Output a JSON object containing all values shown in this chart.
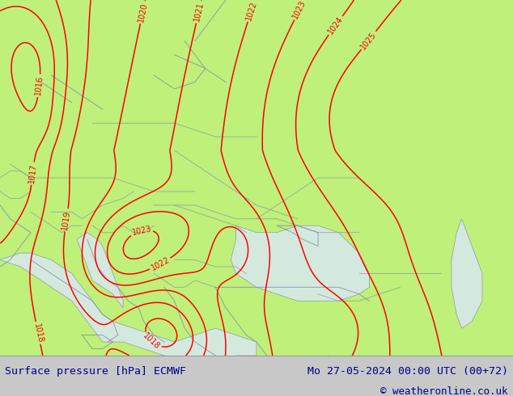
{
  "title_left": "Surface pressure [hPa] ECMWF",
  "title_right": "Mo 27-05-2024 00:00 UTC (00+72)",
  "copyright": "© weatheronline.co.uk",
  "bg_color": "#bef07a",
  "sea_color": "#d8e8f0",
  "footer_bg": "#c8c8c8",
  "footer_text_color": "#00008b",
  "contour_color": "#ff0000",
  "coast_color": "#8888aa",
  "label_fontsize": 7.0,
  "footer_fontsize": 9.5
}
